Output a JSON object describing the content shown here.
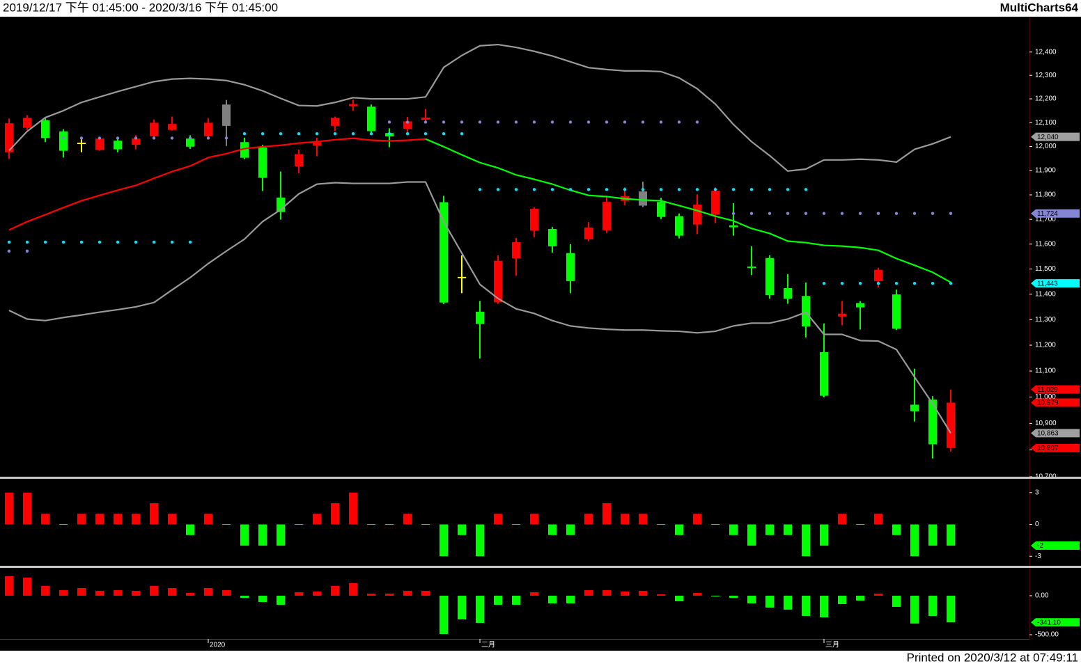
{
  "header": {
    "range": "2019/12/17 下午 01:45:00 - 2020/3/16 下午 01:45:00",
    "app": "MultiCharts64"
  },
  "footer": "Printed on 2020/3/12 at 07:49:11",
  "chart_data": [
    {
      "type": "candlestick",
      "categories": [
        null,
        null,
        null,
        null,
        null,
        null,
        null,
        null,
        null,
        null,
        null,
        "2020",
        null,
        null,
        null,
        null,
        null,
        null,
        null,
        null,
        null,
        null,
        null,
        null,
        null,
        null,
        "二月",
        null,
        null,
        null,
        null,
        null,
        null,
        null,
        null,
        null,
        null,
        null,
        null,
        null,
        null,
        null,
        null,
        null,
        null,
        "三月",
        null,
        null,
        null,
        null,
        null,
        null,
        null
      ],
      "open": [
        11976,
        12078,
        12110,
        12063,
        12013,
        11985,
        12024,
        12007,
        12043,
        12069,
        12033,
        12043,
        12086,
        12018,
        11996,
        11789,
        11917,
        12003,
        12086,
        12169,
        12167,
        12056,
        12074,
        12112,
        11770,
        11466,
        11331,
        11368,
        11543,
        11654,
        11661,
        11564,
        11619,
        11656,
        11775,
        11756,
        11771,
        11713,
        11679,
        11719,
        11676,
        11510,
        11544,
        11424,
        11393,
        11173,
        11312,
        11365,
        11452,
        11399,
        10971,
        10990,
        10807
      ],
      "high": [
        12117,
        12131,
        12119,
        12072,
        12038,
        12038,
        12033,
        12047,
        12113,
        12125,
        12047,
        12119,
        12195,
        12037,
        12007,
        11896,
        11987,
        12037,
        12125,
        12197,
        12176,
        12076,
        12124,
        12157,
        11796,
        11555,
        11373,
        11555,
        11625,
        11749,
        11669,
        11600,
        11689,
        11797,
        11831,
        11854,
        11788,
        11724,
        11802,
        11831,
        11766,
        11591,
        11555,
        11480,
        11446,
        11285,
        11373,
        11373,
        11505,
        11418,
        11109,
        11004,
        11029
      ],
      "low": [
        11948,
        12069,
        12018,
        11954,
        11976,
        11982,
        11976,
        11988,
        12035,
        12066,
        11990,
        12035,
        12002,
        11947,
        11816,
        11699,
        11889,
        11959,
        12064,
        12150,
        12058,
        11997,
        12049,
        12101,
        11361,
        11404,
        11148,
        11362,
        11473,
        11628,
        11566,
        11404,
        11611,
        11645,
        11758,
        11750,
        11701,
        11623,
        11640,
        11685,
        11634,
        11476,
        11382,
        11362,
        11230,
        10999,
        11278,
        11261,
        11427,
        11259,
        10907,
        10768,
        10794
      ],
      "close": [
        12097,
        12120,
        12035,
        11982,
        12013,
        12033,
        11988,
        12033,
        12099,
        12094,
        11999,
        12099,
        12176,
        11953,
        11870,
        11730,
        11968,
        12018,
        12120,
        12178,
        12064,
        12042,
        12105,
        12121,
        11367,
        11466,
        11283,
        11533,
        11608,
        11743,
        11591,
        11452,
        11667,
        11771,
        11795,
        11814,
        11710,
        11634,
        11760,
        11817,
        11668,
        11504,
        11396,
        11382,
        11273,
        11005,
        11323,
        11348,
        11497,
        11264,
        10946,
        10821,
        10979
      ],
      "colors": [
        "#ff0000",
        "#ff0000",
        "#00ff00",
        "#00ff00",
        "#ffff00",
        "#ff0000",
        "#00ff00",
        "#ff0000",
        "#ff0000",
        "#ff0000",
        "#00ff00",
        "#ff0000",
        "#808080",
        "#00ff00",
        "#00ff00",
        "#00ff00",
        "#ff0000",
        "#ff0000",
        "#ff0000",
        "#ff0000",
        "#00ff00",
        "#00ff00",
        "#ff0000",
        "#ff0000",
        "#00ff00",
        "#ffff00",
        "#00ff00",
        "#ff0000",
        "#ff0000",
        "#ff0000",
        "#00ff00",
        "#00ff00",
        "#ff0000",
        "#ff0000",
        "#ff0000",
        "#808080",
        "#00ff00",
        "#00ff00",
        "#ff0000",
        "#ff0000",
        "#00ff00",
        "#00ff00",
        "#00ff00",
        "#00ff00",
        "#00ff00",
        "#00ff00",
        "#ff0000",
        "#00ff00",
        "#ff0000",
        "#00ff00",
        "#00ff00",
        "#00ff00",
        "#ff0000"
      ],
      "lines": [
        {
          "style": "line",
          "color": "#9a9a9a",
          "values": [
            11983,
            12063,
            12121,
            12150,
            12185,
            12208,
            12231,
            12252,
            12273,
            12284,
            12287,
            12284,
            12278,
            12260,
            12234,
            12202,
            12172,
            12170,
            12185,
            12205,
            12200,
            12200,
            12200,
            12208,
            12334,
            12385,
            12427,
            12432,
            12420,
            12403,
            12383,
            12358,
            12333,
            12325,
            12319,
            12319,
            12316,
            12289,
            12243,
            12178,
            12092,
            12020,
            11962,
            11898,
            11906,
            11944,
            11944,
            11947,
            11944,
            11935,
            11988,
            12011,
            12040
          ]
        },
        {
          "style": "line",
          "color": "#ff0000",
          "values": [
            11657,
            11691,
            11719,
            11748,
            11776,
            11798,
            11819,
            11839,
            11868,
            11896,
            11919,
            11954,
            11970,
            11991,
            11999,
            12005,
            12014,
            12020,
            12028,
            12034,
            12026,
            12023,
            12026,
            12031,
            null,
            null,
            null,
            null,
            null,
            null,
            null,
            null,
            null,
            null,
            null,
            null,
            null,
            null,
            null,
            null,
            null,
            null,
            null,
            null,
            null,
            null,
            null,
            null,
            null,
            null,
            null,
            null,
            null
          ]
        },
        {
          "style": "line",
          "color": "#00ff00",
          "values": [
            null,
            null,
            null,
            null,
            null,
            null,
            null,
            null,
            null,
            null,
            null,
            null,
            null,
            null,
            null,
            null,
            null,
            null,
            null,
            null,
            null,
            null,
            null,
            12031,
            11999,
            11965,
            11933,
            11911,
            11882,
            11864,
            11844,
            11819,
            11798,
            11793,
            11784,
            11779,
            11776,
            11756,
            11736,
            11713,
            11694,
            11663,
            11643,
            11612,
            11606,
            11595,
            11592,
            11586,
            11575,
            11542,
            11515,
            11487,
            11447
          ]
        },
        {
          "style": "line",
          "color": "#9a9a9a",
          "values": [
            11336,
            11302,
            11296,
            11308,
            11318,
            11329,
            11339,
            11350,
            11367,
            11417,
            11466,
            11522,
            11572,
            11620,
            11691,
            11740,
            11804,
            11844,
            11850,
            11847,
            11847,
            11847,
            11853,
            11853,
            11691,
            11564,
            11439,
            11383,
            11342,
            11324,
            11296,
            11275,
            11267,
            11262,
            11259,
            11259,
            11256,
            11254,
            11248,
            11254,
            11275,
            11286,
            11286,
            11302,
            11329,
            11242,
            11242,
            11218,
            11216,
            11183,
            11077,
            10975,
            10863
          ]
        },
        {
          "style": "dots",
          "color": "#00e5ff",
          "values": [
            11608,
            11608,
            11608,
            11608,
            11608,
            11608,
            11608,
            11608,
            11608,
            11608,
            11608,
            null,
            null,
            12053,
            12053,
            12053,
            12053,
            12053,
            12053,
            12053,
            12053,
            12053,
            12053,
            12053,
            12053,
            12053,
            11822,
            11822,
            11822,
            11822,
            11822,
            11822,
            11822,
            11822,
            11822,
            11822,
            11822,
            11822,
            11822,
            11822,
            11822,
            11822,
            11822,
            11822,
            11822,
            11443,
            11443,
            11443,
            11443,
            11443,
            11443,
            11443,
            11443
          ]
        },
        {
          "style": "dots",
          "color": "#8585d6",
          "values": [
            11572,
            11572,
            null,
            12035,
            12035,
            12035,
            12035,
            12035,
            12035,
            12035,
            12035,
            12035,
            12035,
            null,
            null,
            null,
            null,
            null,
            null,
            null,
            null,
            12102,
            12102,
            12102,
            12102,
            12102,
            12102,
            12102,
            12102,
            12102,
            12102,
            12102,
            12102,
            12102,
            12102,
            12102,
            12102,
            12102,
            12102,
            null,
            11724,
            11724,
            11724,
            11724,
            11724,
            11724,
            11724,
            11724,
            11724,
            11724,
            11724,
            11724,
            11724
          ]
        }
      ],
      "log_scale": true,
      "ylim": [
        10700,
        12553
      ],
      "yticks": [
        {
          "value": 10700,
          "label": "10,700"
        },
        {
          "value": 10800,
          "label": "10,800"
        },
        {
          "value": 10900,
          "label": "10,900"
        },
        {
          "value": 11000,
          "label": "11,000"
        },
        {
          "value": 11100,
          "label": "11,100"
        },
        {
          "value": 11200,
          "label": "11,200"
        },
        {
          "value": 11300,
          "label": "11,300"
        },
        {
          "value": 11400,
          "label": "11,400"
        },
        {
          "value": 11500,
          "label": "11,500"
        },
        {
          "value": 11600,
          "label": "11,600"
        },
        {
          "value": 11700,
          "label": "11,700"
        },
        {
          "value": 11800,
          "label": "11,800"
        },
        {
          "value": 11900,
          "label": "11,900"
        },
        {
          "value": 12000,
          "label": "12,000"
        },
        {
          "value": 12100,
          "label": "12,100"
        },
        {
          "value": 12200,
          "label": "12,200"
        },
        {
          "value": 12300,
          "label": "12,300"
        },
        {
          "value": 12400,
          "label": "12,400"
        }
      ],
      "axis_markers": [
        {
          "value": 12040,
          "label": "12,040",
          "color": "#a0a0a0"
        },
        {
          "value": 11724,
          "label": "11,724",
          "color": "#8585d6"
        },
        {
          "value": 11443,
          "label": "11,443",
          "color": "#00ffff"
        },
        {
          "value": 11029,
          "label": "11,029",
          "color": "#ff0000"
        },
        {
          "value": 10979,
          "label": "10,979",
          "color": "#ff0000"
        },
        {
          "value": 10863,
          "label": "10,863",
          "color": "#a0a0a0"
        },
        {
          "value": 10807,
          "label": "10,807",
          "color": "#ff0000"
        }
      ]
    },
    {
      "type": "bar",
      "values": [
        3,
        3,
        1,
        0,
        1,
        1,
        1,
        1,
        2,
        1,
        -1,
        1,
        0,
        -2,
        -2,
        -2,
        0,
        1,
        2,
        3,
        0,
        0,
        1,
        0,
        -3,
        -1,
        -3,
        1,
        0,
        1,
        -1,
        -1,
        1,
        2,
        1,
        1,
        0,
        -1,
        1,
        0,
        -1,
        -2,
        -1,
        -1,
        -3,
        -2,
        1,
        0,
        1,
        -1,
        -3,
        -2,
        -2
      ],
      "up_color": "#ff0000",
      "down_color": "#00ff00",
      "ylim": [
        -3.9,
        4.3
      ],
      "yticks": [
        3,
        0,
        -3
      ],
      "axis_markers": [
        {
          "value": -2,
          "color": "#00ff00"
        }
      ]
    },
    {
      "type": "bar",
      "values": [
        250,
        232,
        125,
        71,
        98,
        62,
        71,
        62,
        125,
        98,
        36,
        98,
        71,
        -27,
        -80,
        -116,
        45,
        54,
        125,
        161,
        27,
        27,
        62,
        62,
        -491,
        -304,
        -348,
        -116,
        -116,
        45,
        -98,
        -98,
        71,
        71,
        54,
        62,
        18,
        -71,
        36,
        -9,
        -27,
        -98,
        -152,
        -179,
        -259,
        -277,
        -107,
        -62,
        27,
        -143,
        -357,
        -259,
        -341.1
      ],
      "up_color": "#ff0000",
      "down_color": "#00ff00",
      "ylim": [
        -553,
        348
      ],
      "yticks": [
        {
          "value": 0,
          "label": "0.00"
        },
        {
          "value": -500,
          "label": "-500.00"
        }
      ],
      "axis_markers": [
        {
          "value": -341.1,
          "label": "-341.10",
          "color": "#00ff00"
        }
      ]
    }
  ]
}
